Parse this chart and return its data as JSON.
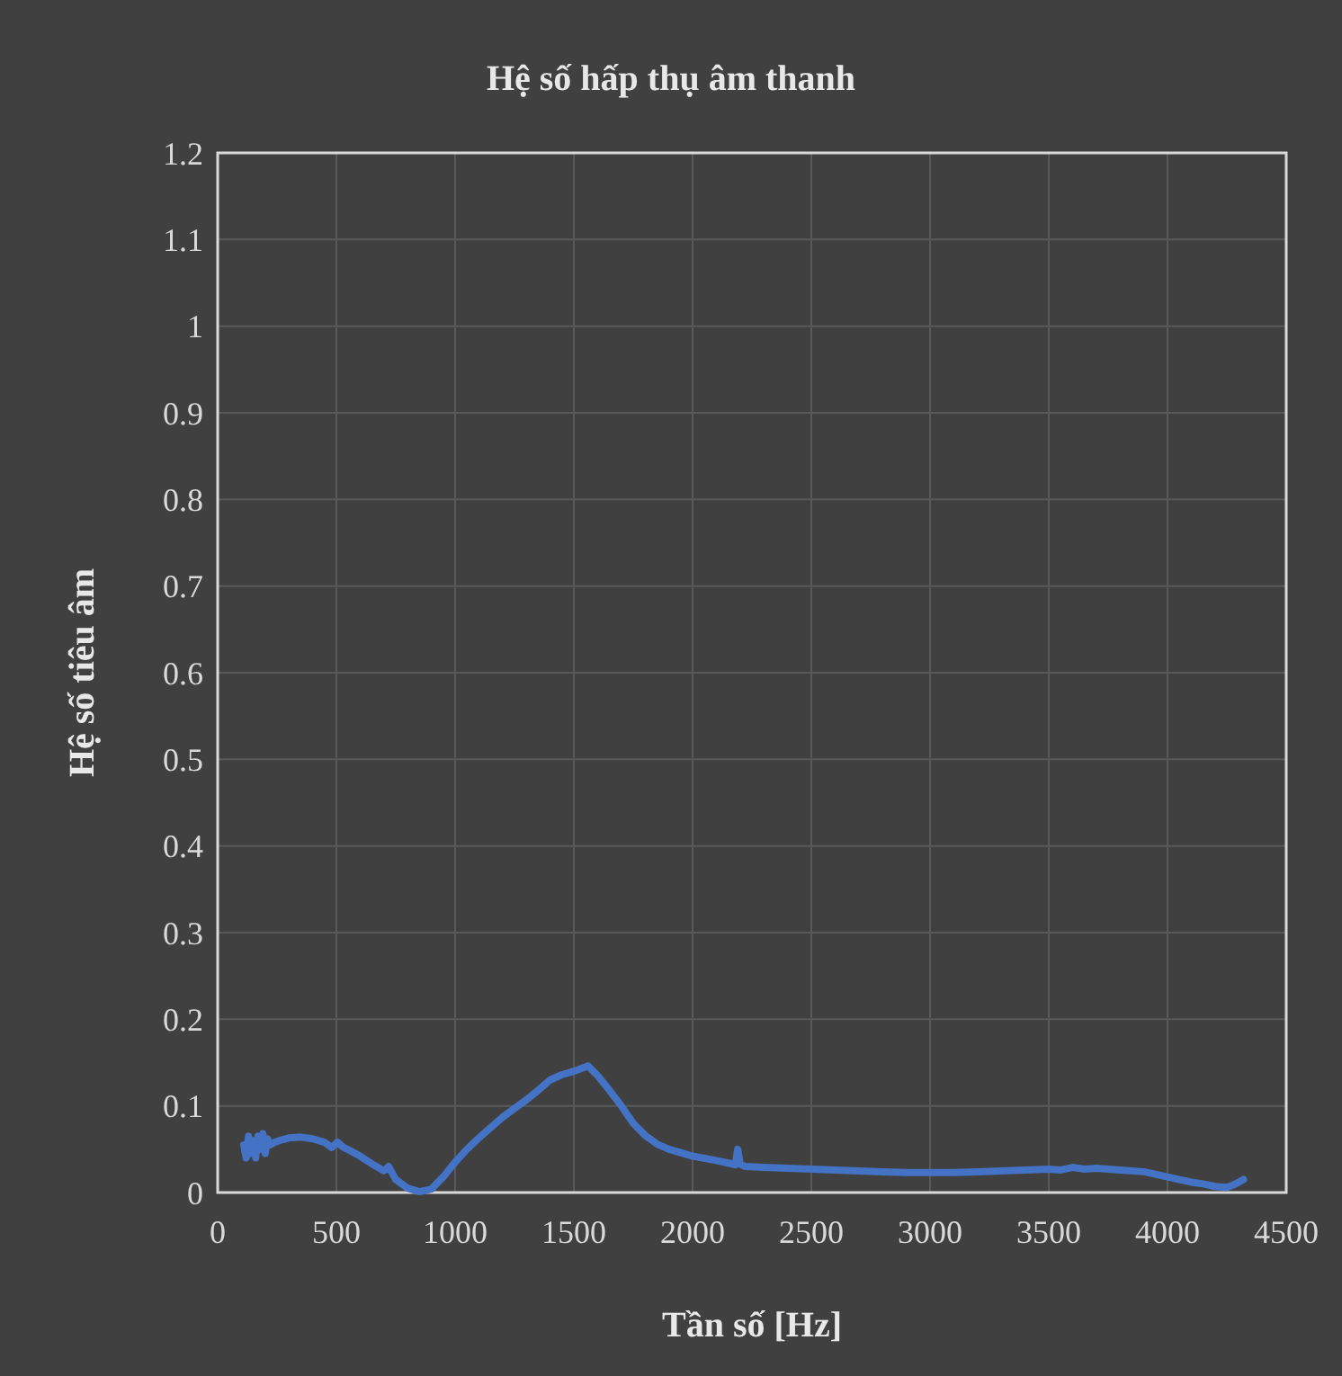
{
  "chart_data": {
    "type": "line",
    "title": "Hệ số hấp thụ âm thanh",
    "xlabel": "Tần số [Hz]",
    "ylabel": "Hệ số tiêu âm",
    "xlim": [
      0,
      4500
    ],
    "ylim": [
      0,
      1.2
    ],
    "xticks": [
      0,
      500,
      1000,
      1500,
      2000,
      2500,
      3000,
      3500,
      4000,
      4500
    ],
    "yticks": [
      0,
      0.1,
      0.2,
      0.3,
      0.4,
      0.5,
      0.6,
      0.7,
      0.8,
      0.9,
      1,
      1.1,
      1.2
    ],
    "grid": true,
    "marker": "none",
    "line_style": "solid",
    "series": [
      {
        "color": "#4472c4",
        "x": [
          110,
          120,
          130,
          140,
          150,
          160,
          170,
          180,
          190,
          200,
          210,
          220,
          240,
          260,
          300,
          350,
          400,
          450,
          480,
          505,
          530,
          560,
          600,
          650,
          700,
          720,
          750,
          800,
          850,
          900,
          950,
          1000,
          1050,
          1100,
          1150,
          1200,
          1250,
          1300,
          1350,
          1400,
          1450,
          1500,
          1540,
          1560,
          1600,
          1650,
          1700,
          1750,
          1800,
          1850,
          1900,
          2000,
          2100,
          2150,
          2180,
          2190,
          2200,
          2220,
          2300,
          2400,
          2500,
          2600,
          2700,
          2800,
          2900,
          3000,
          3100,
          3200,
          3300,
          3400,
          3500,
          3550,
          3600,
          3650,
          3700,
          3800,
          3900,
          4000,
          4050,
          4100,
          4150,
          4200,
          4250,
          4280,
          4300,
          4320
        ],
        "values": [
          0.055,
          0.04,
          0.065,
          0.045,
          0.06,
          0.04,
          0.065,
          0.05,
          0.068,
          0.045,
          0.062,
          0.055,
          0.058,
          0.06,
          0.063,
          0.064,
          0.062,
          0.058,
          0.052,
          0.058,
          0.052,
          0.048,
          0.042,
          0.033,
          0.025,
          0.03,
          0.015,
          0.005,
          0.001,
          0.004,
          0.018,
          0.035,
          0.05,
          0.063,
          0.075,
          0.087,
          0.097,
          0.107,
          0.118,
          0.13,
          0.136,
          0.14,
          0.144,
          0.146,
          0.135,
          0.118,
          0.1,
          0.08,
          0.066,
          0.056,
          0.05,
          0.042,
          0.037,
          0.034,
          0.032,
          0.05,
          0.033,
          0.03,
          0.029,
          0.028,
          0.027,
          0.026,
          0.025,
          0.024,
          0.023,
          0.023,
          0.023,
          0.024,
          0.025,
          0.026,
          0.027,
          0.026,
          0.029,
          0.027,
          0.028,
          0.026,
          0.024,
          0.018,
          0.015,
          0.012,
          0.01,
          0.007,
          0.006,
          0.009,
          0.012,
          0.015
        ]
      }
    ]
  }
}
